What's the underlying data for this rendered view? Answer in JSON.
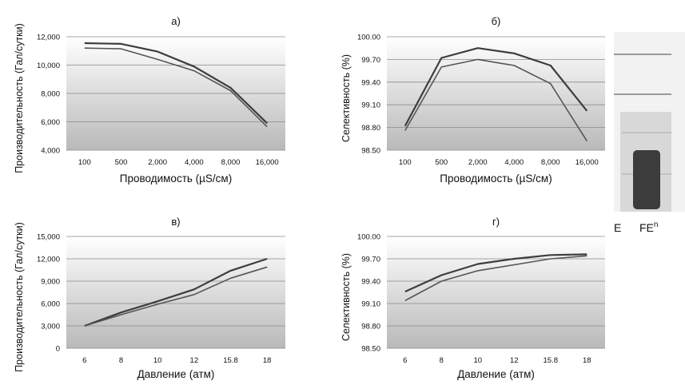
{
  "side_labels": {
    "left": "E",
    "right": "FE",
    "right_sup": "n"
  },
  "chart_data": [
    {
      "type": "line",
      "title": "а)",
      "xlabel": "Проводимость (µS/см)",
      "ylabel": "Производительность (Гал/сутки)",
      "categories": [
        "100",
        "500",
        "2,000",
        "4,000",
        "8,000",
        "16,000"
      ],
      "yticks": [
        "4,000",
        "6,000",
        "8,000",
        "10,000",
        "12,000"
      ],
      "ylim": [
        4000,
        12000
      ],
      "grid": true,
      "series": [
        {
          "values": [
            11550,
            11500,
            10950,
            9900,
            8400,
            5900
          ]
        },
        {
          "values": [
            11200,
            11150,
            10400,
            9600,
            8200,
            5650
          ]
        }
      ]
    },
    {
      "type": "line",
      "title": "б)",
      "xlabel": "Проводимость (µS/см)",
      "ylabel": "Селективность (%)",
      "categories": [
        "100",
        "500",
        "2,000",
        "4,000",
        "8,000",
        "16,000"
      ],
      "yticks": [
        "98.50",
        "98.80",
        "99.10",
        "99.40",
        "99.70",
        "100.00"
      ],
      "ylim": [
        98.5,
        100.0
      ],
      "grid": true,
      "series": [
        {
          "values": [
            98.82,
            99.72,
            99.85,
            99.78,
            99.62,
            99.02
          ]
        },
        {
          "values": [
            98.76,
            99.6,
            99.7,
            99.62,
            99.38,
            98.62
          ]
        }
      ]
    },
    {
      "type": "line",
      "title": "в)",
      "xlabel": "Давление (атм)",
      "ylabel": "Производительность (Гал/сутки)",
      "categories": [
        "6",
        "8",
        "10",
        "12",
        "15.8",
        "18"
      ],
      "yticks": [
        "0",
        "3,000",
        "6,000",
        "9,000",
        "12,000",
        "15,000"
      ],
      "ylim": [
        0,
        15000
      ],
      "grid": true,
      "series": [
        {
          "values": [
            3000,
            4800,
            6300,
            7900,
            10400,
            12000
          ]
        },
        {
          "values": [
            3000,
            4500,
            5900,
            7200,
            9400,
            10900
          ]
        }
      ]
    },
    {
      "type": "line",
      "title": "г)",
      "xlabel": "Давление (атм)",
      "ylabel": "Селективность (%)",
      "categories": [
        "6",
        "8",
        "10",
        "12",
        "15.8",
        "18"
      ],
      "yticks": [
        "98.50",
        "98.80",
        "99.10",
        "99.40",
        "99.70",
        "100.00"
      ],
      "ylim": [
        98.5,
        100.0
      ],
      "grid": true,
      "series": [
        {
          "values": [
            99.26,
            99.48,
            99.63,
            99.7,
            99.75,
            99.76
          ]
        },
        {
          "values": [
            99.14,
            99.4,
            99.54,
            99.62,
            99.7,
            99.74
          ]
        }
      ]
    }
  ]
}
